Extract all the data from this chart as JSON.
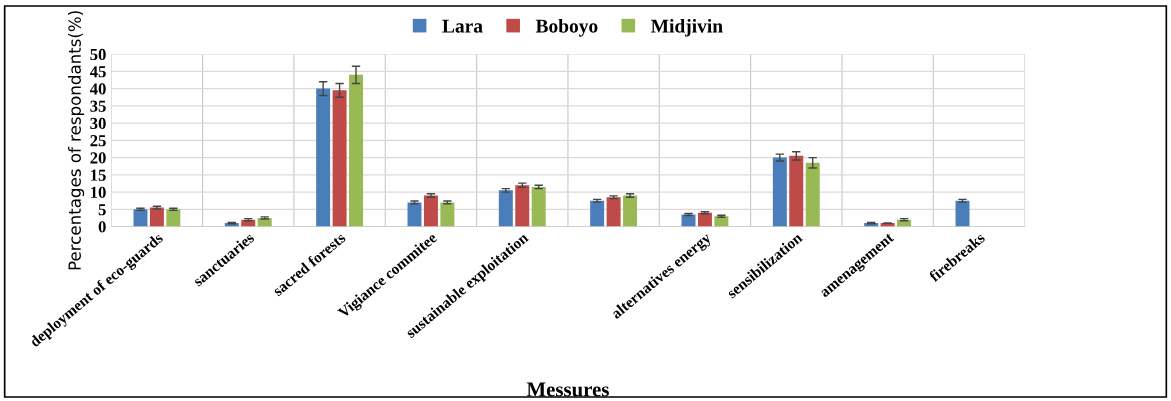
{
  "chart_data": {
    "type": "bar",
    "xlabel": "Messures",
    "ylabel": "Percentages of respondants(%)",
    "categories": [
      "deployment of eco-guards",
      "sanctuaries",
      "sacred forests",
      "Vigiance commitee",
      "sustainable exploitation",
      null,
      "alternatives energy",
      "sensibilization",
      "amenagement",
      "firebreaks"
    ],
    "series": [
      {
        "name": "Lara",
        "color": "#4a7ebb",
        "values": [
          5,
          1,
          40,
          7,
          10.5,
          7.5,
          3.5,
          20,
          1,
          7.5
        ],
        "errors": [
          0.3,
          0.2,
          2,
          0.4,
          0.5,
          0.4,
          0.3,
          1,
          0.2,
          0.4
        ]
      },
      {
        "name": "Boboyo",
        "color": "#be4b48",
        "values": [
          5.5,
          2,
          39.5,
          9,
          12,
          8.5,
          4,
          20.5,
          1,
          null
        ],
        "errors": [
          0.4,
          0.3,
          2,
          0.5,
          0.6,
          0.4,
          0.3,
          1.2,
          null,
          null
        ]
      },
      {
        "name": "Midjivin",
        "color": "#98b954",
        "values": [
          5,
          2.5,
          44,
          7,
          11.5,
          9,
          3,
          18.5,
          2,
          null
        ],
        "errors": [
          0.3,
          0.3,
          2.5,
          0.4,
          0.5,
          0.5,
          0.3,
          1.5,
          0.3,
          null
        ]
      }
    ],
    "ylim": [
      0,
      50
    ],
    "yticks": [
      0,
      5,
      10,
      15,
      20,
      25,
      30,
      35,
      40,
      45,
      50
    ],
    "grid": true,
    "legend": "top"
  }
}
